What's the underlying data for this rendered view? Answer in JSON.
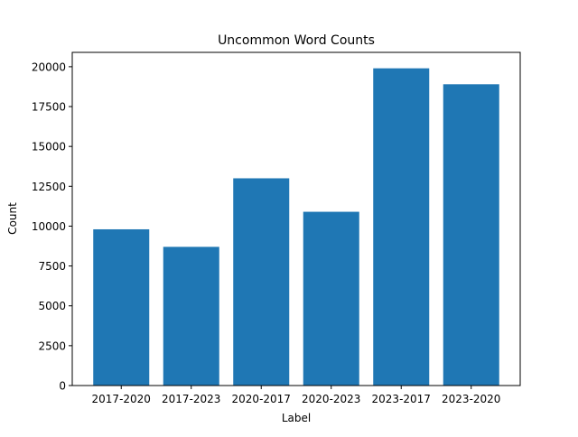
{
  "chart_data": {
    "type": "bar",
    "title": "Uncommon Word Counts",
    "xlabel": "Label",
    "ylabel": "Count",
    "categories": [
      "2017-2020",
      "2017-2023",
      "2020-2017",
      "2020-2023",
      "2023-2017",
      "2023-2020"
    ],
    "values": [
      9800,
      8700,
      13000,
      10900,
      19900,
      18900
    ],
    "ylim": [
      0,
      20900
    ],
    "yticks": [
      0,
      2500,
      5000,
      7500,
      10000,
      12500,
      15000,
      17500,
      20000
    ],
    "ytick_labels": [
      "0",
      "2500",
      "5000",
      "7500",
      "10000",
      "12500",
      "15000",
      "17500",
      "20000"
    ],
    "bar_color": "#1f77b4",
    "grid": false,
    "legend": false
  }
}
